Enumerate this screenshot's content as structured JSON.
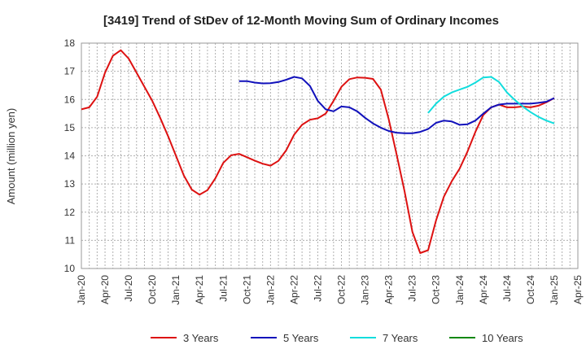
{
  "chart_data": {
    "type": "line",
    "title": "[3419]  Trend of StDev of 12-Month Moving Sum of Ordinary Incomes",
    "ylabel": "Amount (million yen)",
    "xlabel": "",
    "ylim": [
      10,
      18
    ],
    "yticks": [
      "10",
      "11",
      "12",
      "13",
      "14",
      "15",
      "16",
      "17",
      "18"
    ],
    "xticks": [
      "Jan-20",
      "Apr-20",
      "Jul-20",
      "Oct-20",
      "Jan-21",
      "Apr-21",
      "Jul-21",
      "Oct-21",
      "Jan-22",
      "Apr-22",
      "Jul-22",
      "Oct-22",
      "Jan-23",
      "Apr-23",
      "Jul-23",
      "Oct-23",
      "Jan-24",
      "Apr-24",
      "Jul-24",
      "Oct-24",
      "Jan-25",
      "Apr-25"
    ],
    "grid": true,
    "legend_position": "bottom",
    "series": [
      {
        "name": "3 Years",
        "color": "#dd1111",
        "start": "Jan-20",
        "values": [
          15.65,
          15.72,
          16.1,
          16.95,
          17.55,
          17.75,
          17.45,
          16.95,
          16.45,
          15.95,
          15.35,
          14.7,
          14.0,
          13.3,
          12.8,
          12.62,
          12.78,
          13.2,
          13.75,
          14.02,
          14.07,
          13.95,
          13.83,
          13.72,
          13.65,
          13.82,
          14.2,
          14.75,
          15.1,
          15.28,
          15.33,
          15.5,
          15.95,
          16.45,
          16.72,
          16.78,
          16.77,
          16.73,
          16.35,
          15.3,
          14.05,
          12.75,
          11.3,
          10.55,
          10.65,
          11.7,
          12.55,
          13.1,
          13.55,
          14.15,
          14.85,
          15.45,
          15.72,
          15.82,
          15.72,
          15.72,
          15.75,
          15.72,
          15.78,
          15.9,
          16.05
        ]
      },
      {
        "name": "5 Years",
        "color": "#1111bb",
        "start": "Sep-21",
        "values": [
          16.65,
          16.65,
          16.6,
          16.57,
          16.58,
          16.62,
          16.7,
          16.8,
          16.75,
          16.48,
          15.95,
          15.65,
          15.58,
          15.75,
          15.72,
          15.58,
          15.35,
          15.15,
          15.0,
          14.88,
          14.82,
          14.8,
          14.8,
          14.85,
          14.95,
          15.17,
          15.25,
          15.22,
          15.1,
          15.12,
          15.25,
          15.5,
          15.72,
          15.82,
          15.85,
          15.85,
          15.85,
          15.85,
          15.88,
          15.92,
          16.05
        ]
      },
      {
        "name": "7 Years",
        "color": "#11dddd",
        "start": "Sep-23",
        "values": [
          15.52,
          15.85,
          16.1,
          16.25,
          16.35,
          16.45,
          16.6,
          16.78,
          16.8,
          16.62,
          16.25,
          15.98,
          15.75,
          15.55,
          15.38,
          15.25,
          15.15
        ]
      },
      {
        "name": "10 Years",
        "color": "#118811",
        "start": "",
        "values": []
      }
    ]
  }
}
